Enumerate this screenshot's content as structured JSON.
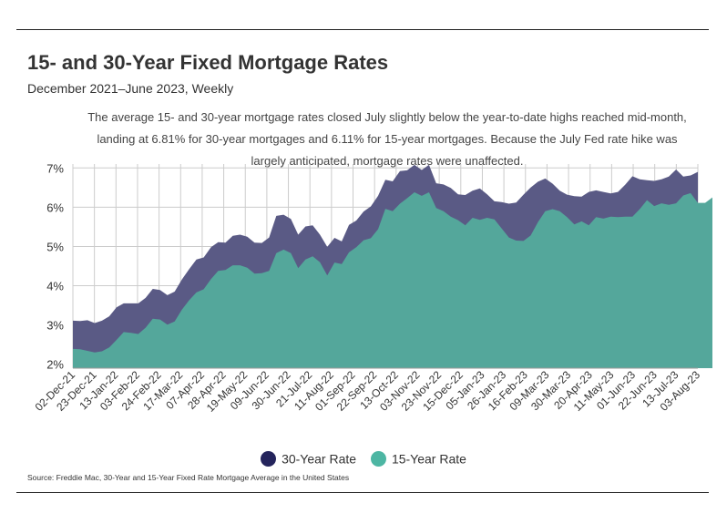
{
  "title": "15- and 30-Year Fixed Mortgage Rates",
  "subtitle": "December 2021–June 2023, Weekly",
  "caption_lines": [
    "The average 15- and 30-year mortgage rates closed July slightly below the year-to-date highs reached mid-month,",
    "landing at 6.81% for 30-year mortgages and 6.11% for 15-year mortgages. Because the July Fed rate hike was",
    "largely anticipated, mortgage rates were unaffected."
  ],
  "source": "Source:  Freddie Mac, 30-Year  and 15-Year Fixed Rate Mortgage Average in the United States",
  "colors": {
    "thirty": "#5a5a85",
    "fifteen": "#54a79b",
    "grid": "#cccccc",
    "legend_thirty": "#24245c",
    "legend_fifteen": "#4db6a3"
  },
  "chart_data": {
    "type": "area",
    "ylim": [
      1.9,
      7.1
    ],
    "yticks": [
      2,
      3,
      4,
      5,
      6,
      7
    ],
    "ytick_labels": [
      "2%",
      "3%",
      "4%",
      "5%",
      "6%",
      "7%"
    ],
    "x_tick_labels": [
      "02-Dec-21",
      "23-Dec-21",
      "13-Jan-22",
      "03-Feb-22",
      "24-Feb-22",
      "17-Mar-22",
      "07-Apr-22",
      "28-Apr-22",
      "19-May-22",
      "09-Jun-22",
      "30-Jun-22",
      "21-Jul-22",
      "11-Aug-22",
      "01-Sep-22",
      "22-Sep-22",
      "13-Oct-22",
      "03-Nov-22",
      "23-Nov-22",
      "15-Dec-22",
      "05-Jan-23",
      "26-Jan-23",
      "16-Feb-23",
      "09-Mar-23",
      "30-Mar-23",
      "20-Apr-23",
      "11-May-23",
      "01-Jun-23",
      "22-Jun-23",
      "13-Jul-23",
      "03-Aug-23"
    ],
    "series": [
      {
        "name": "30-Year Rate",
        "values": [
          3.11,
          3.1,
          3.12,
          3.05,
          3.11,
          3.22,
          3.45,
          3.55,
          3.55,
          3.55,
          3.69,
          3.92,
          3.89,
          3.76,
          3.85,
          4.16,
          4.42,
          4.67,
          4.72,
          4.98,
          5.11,
          5.1,
          5.27,
          5.3,
          5.25,
          5.1,
          5.09,
          5.23,
          5.78,
          5.81,
          5.7,
          5.3,
          5.51,
          5.54,
          5.3,
          4.99,
          5.22,
          5.13,
          5.55,
          5.66,
          5.89,
          6.02,
          6.29,
          6.7,
          6.66,
          6.92,
          6.94,
          7.08,
          6.95,
          7.08,
          6.61,
          6.58,
          6.49,
          6.33,
          6.31,
          6.42,
          6.48,
          6.33,
          6.15,
          6.13,
          6.09,
          6.12,
          6.32,
          6.5,
          6.65,
          6.73,
          6.6,
          6.42,
          6.32,
          6.28,
          6.27,
          6.39,
          6.43,
          6.39,
          6.35,
          6.39,
          6.57,
          6.79,
          6.71,
          6.69,
          6.67,
          6.71,
          6.78,
          6.96,
          6.78,
          6.81,
          6.9
        ]
      },
      {
        "name": "15-Year Rate",
        "values": [
          2.39,
          2.38,
          2.34,
          2.3,
          2.33,
          2.43,
          2.62,
          2.82,
          2.8,
          2.77,
          2.93,
          3.16,
          3.14,
          3.01,
          3.09,
          3.39,
          3.63,
          3.83,
          3.91,
          4.17,
          4.38,
          4.4,
          4.52,
          4.52,
          4.46,
          4.31,
          4.32,
          4.38,
          4.83,
          4.92,
          4.83,
          4.45,
          4.67,
          4.75,
          4.6,
          4.26,
          4.59,
          4.55,
          4.85,
          4.98,
          5.16,
          5.21,
          5.44,
          5.96,
          5.9,
          6.09,
          6.23,
          6.38,
          6.29,
          6.38,
          5.98,
          5.9,
          5.76,
          5.67,
          5.54,
          5.73,
          5.68,
          5.73,
          5.69,
          5.46,
          5.23,
          5.15,
          5.14,
          5.28,
          5.62,
          5.9,
          5.95,
          5.9,
          5.75,
          5.56,
          5.64,
          5.54,
          5.75,
          5.71,
          5.76,
          5.75,
          5.76,
          5.76,
          5.95,
          6.18,
          6.03,
          6.1,
          6.06,
          6.1,
          6.3,
          6.36,
          6.11,
          6.11,
          6.25
        ]
      }
    ],
    "legend": "bottom-center",
    "grid": true
  }
}
